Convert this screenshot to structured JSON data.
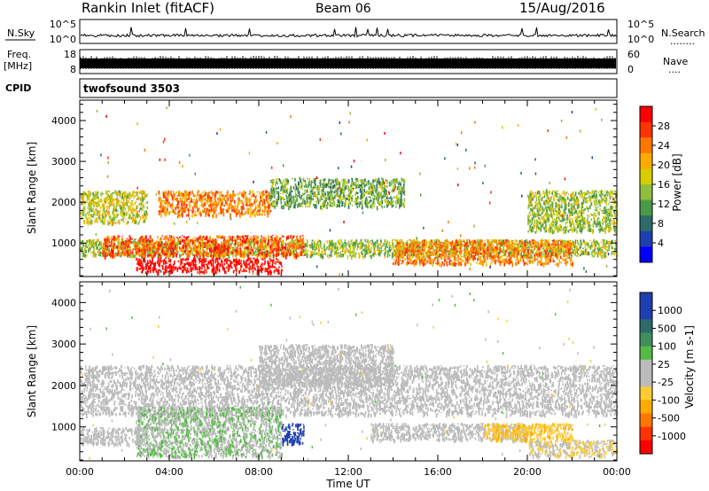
{
  "header": {
    "station": "Rankin Inlet (fitACF)",
    "beam": "Beam 06",
    "date": "15/Aug/2016"
  },
  "nsky_panel": {
    "left_label": "N.Sky",
    "right_label": "N.Search",
    "right_dots": "........",
    "left_ticks": [
      "10^5",
      "10^0"
    ],
    "right_ticks": [
      "10^5",
      "10^0"
    ]
  },
  "freq_panel": {
    "label_line1": "Freq.",
    "label_line2": "[MHz]",
    "right_label": "Nave",
    "right_dots": "....",
    "left_ticks": [
      "18",
      "8"
    ],
    "right_ticks": [
      "60",
      "0"
    ]
  },
  "cpid_panel": {
    "label": "CPID",
    "value": "twofsound 3503"
  },
  "axes": {
    "ylabel": "Slant Range [km]",
    "xlabel": "Time UT",
    "x_ticks": [
      "00:00",
      "04:00",
      "08:00",
      "12:00",
      "16:00",
      "20:00",
      "00:00"
    ],
    "y_ticks": [
      "4000",
      "3000",
      "2000",
      "1000"
    ]
  },
  "power_colorbar": {
    "label": "Power [dB]",
    "ticks": [
      "28",
      "24",
      "20",
      "16",
      "12",
      "8",
      "4"
    ],
    "colors": [
      "#ff0000",
      "#ff3300",
      "#ff7700",
      "#ffaa00",
      "#d9cc00",
      "#8fbf3c",
      "#4a9a4a",
      "#2d6b6b",
      "#1f3fb0",
      "#0000ff"
    ]
  },
  "velocity_colorbar": {
    "label": "Velocity [m s-1]",
    "ticks": [
      "1000",
      "500",
      "100",
      "25",
      "-25",
      "-100",
      "-500",
      "-1000"
    ],
    "colors": [
      "#1f3fb0",
      "#1f3fb0",
      "#2d6b6b",
      "#3f8f5f",
      "#55bb44",
      "#bbbbbb",
      "#bbbbbb",
      "#ffcc33",
      "#ffaa00",
      "#ff7700",
      "#ff3300",
      "#ff0000"
    ]
  },
  "chart_data": {
    "type": "heatmap",
    "x_range_hours": [
      0,
      24
    ],
    "y_range_km": [
      180,
      4500
    ],
    "x_tick_values_hours": [
      0,
      4,
      8,
      12,
      16,
      20,
      24
    ],
    "y_tick_values_km": [
      4000,
      3000,
      2000,
      1000
    ],
    "panels": [
      {
        "name": "Power",
        "unit": "dB",
        "range": [
          0,
          30
        ],
        "echo_regions": [
          {
            "t": [
              0.0,
              24.0
            ],
            "r": [
              700,
              1100
            ],
            "value": 14
          },
          {
            "t": [
              1.0,
              10.0
            ],
            "r": [
              700,
              1200
            ],
            "value": 24
          },
          {
            "t": [
              2.5,
              9.0
            ],
            "r": [
              300,
              650
            ],
            "value": 30
          },
          {
            "t": [
              0.0,
              3.0
            ],
            "r": [
              1500,
              2300
            ],
            "value": 16
          },
          {
            "t": [
              3.5,
              8.5
            ],
            "r": [
              1700,
              2300
            ],
            "value": 22
          },
          {
            "t": [
              8.5,
              14.5
            ],
            "r": [
              1900,
              2600
            ],
            "value": 12
          },
          {
            "t": [
              14.0,
              22.0
            ],
            "r": [
              500,
              1100
            ],
            "value": 22
          },
          {
            "t": [
              20.0,
              24.0
            ],
            "r": [
              1300,
              2300
            ],
            "value": 14
          }
        ]
      },
      {
        "name": "Velocity",
        "unit": "m s-1",
        "range": [
          -1000,
          1000
        ],
        "echo_regions": [
          {
            "t": [
              0.0,
              24.0
            ],
            "r": [
              1300,
              2500
            ],
            "value": 0
          },
          {
            "t": [
              8.0,
              14.0
            ],
            "r": [
              2000,
              3000
            ],
            "value": 0
          },
          {
            "t": [
              2.5,
              9.0
            ],
            "r": [
              300,
              1500
            ],
            "value": 150
          },
          {
            "t": [
              0.0,
              3.0
            ],
            "r": [
              600,
              1000
            ],
            "value": 80
          },
          {
            "t": [
              9.0,
              10.0
            ],
            "r": [
              600,
              1100
            ],
            "value": 900
          },
          {
            "t": [
              13.0,
              20.0
            ],
            "r": [
              700,
              1100
            ],
            "value": 0
          },
          {
            "t": [
              18.0,
              22.0
            ],
            "r": [
              700,
              1100
            ],
            "value": -300
          },
          {
            "t": [
              20.0,
              24.0
            ],
            "r": [
              300,
              700
            ],
            "value": -150
          }
        ]
      }
    ]
  }
}
